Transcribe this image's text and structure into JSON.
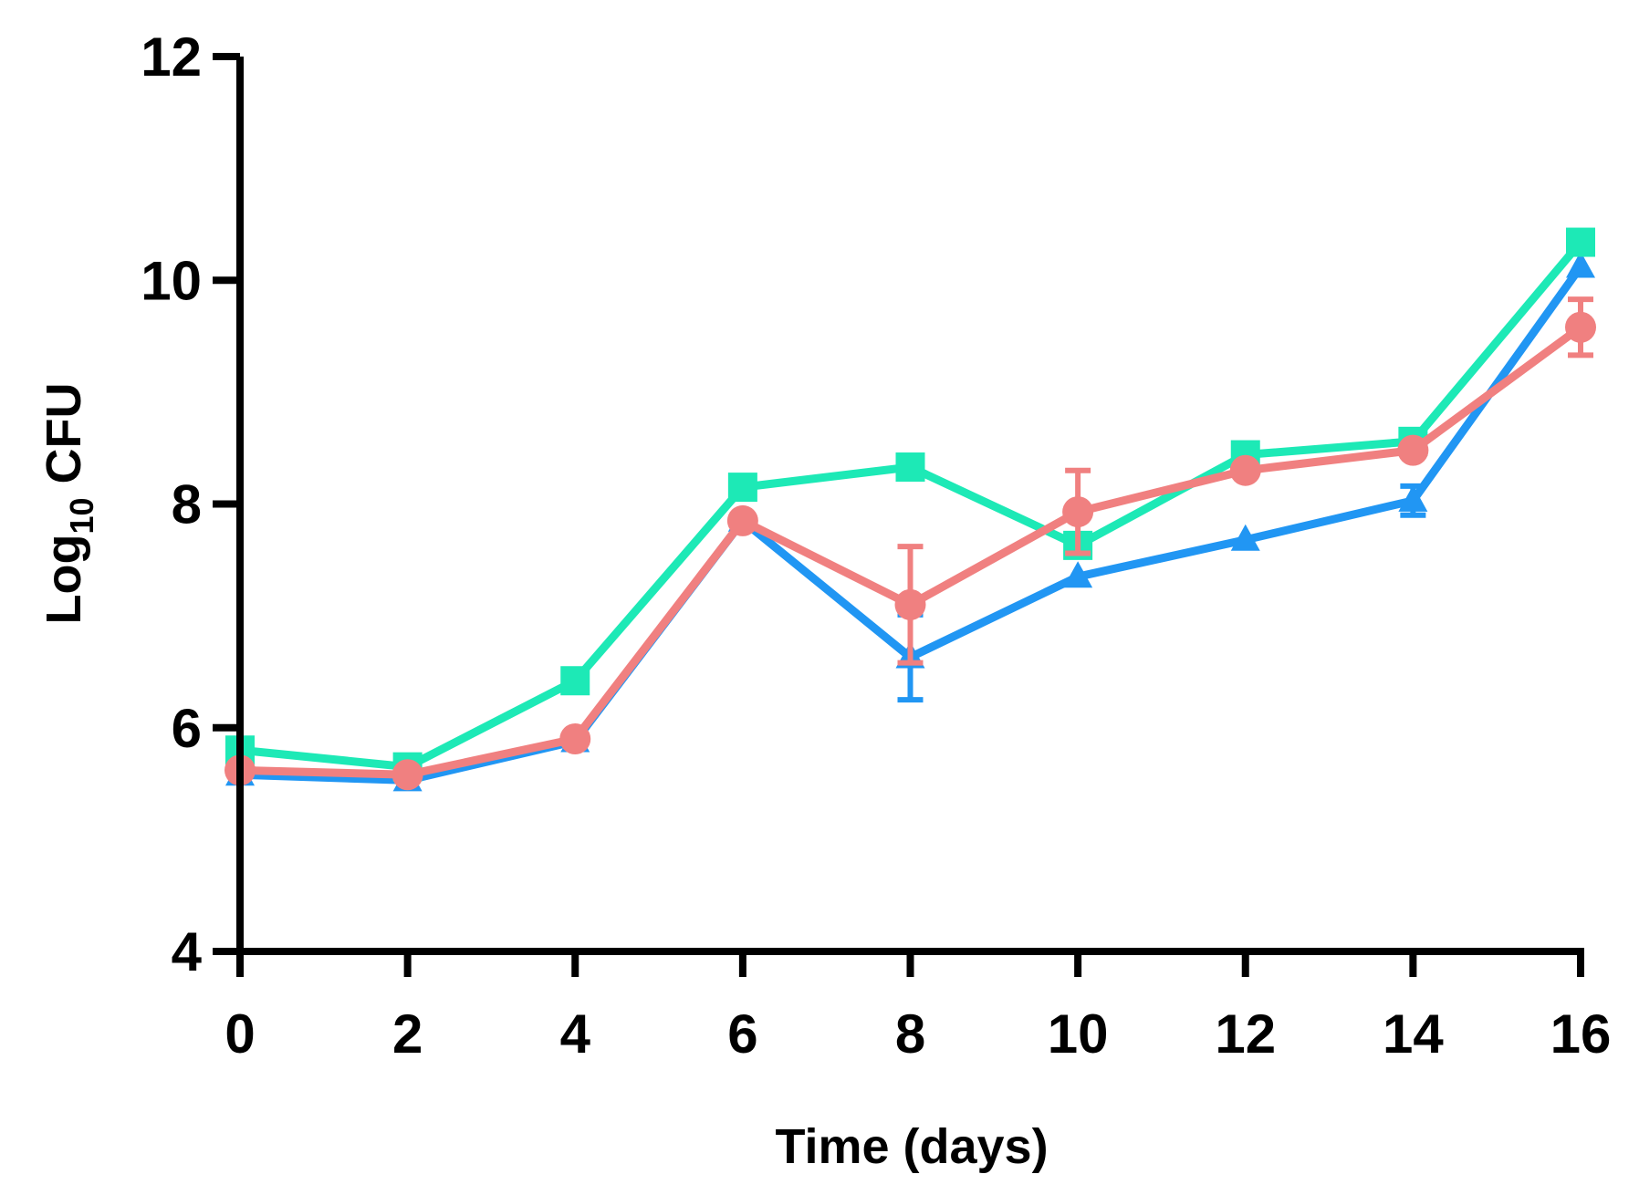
{
  "chart_data": {
    "type": "line",
    "title": "",
    "xlabel": "Time (days)",
    "ylabel_main": "Log",
    "ylabel_sub": "10",
    "ylabel_rest": " CFU",
    "xlim": [
      0,
      16
    ],
    "ylim": [
      4,
      12
    ],
    "x_ticks": [
      0,
      2,
      4,
      6,
      8,
      10,
      12,
      14,
      16
    ],
    "x_tick_labels": [
      "0",
      "2",
      "4",
      "6",
      "8",
      "10",
      "12",
      "14",
      "16"
    ],
    "y_ticks": [
      4,
      6,
      8,
      10,
      12
    ],
    "y_tick_labels": [
      "4",
      "6",
      "8",
      "10",
      "12"
    ],
    "grid": false,
    "series": [
      {
        "name": "blue-triangle-series",
        "color": "#2196F3",
        "marker": "triangle",
        "x": [
          0,
          2,
          4,
          6,
          8,
          10,
          12,
          14,
          16
        ],
        "y": [
          5.58,
          5.53,
          5.88,
          7.85,
          6.63,
          7.35,
          7.68,
          8.03,
          10.12
        ],
        "err": [
          0.05,
          0.05,
          0.04,
          0.05,
          0.38,
          0.05,
          0.04,
          0.13,
          0.05
        ]
      },
      {
        "name": "green-square-series",
        "color": "#1DE9B6",
        "marker": "square",
        "x": [
          0,
          2,
          4,
          6,
          8,
          10,
          12,
          14,
          16
        ],
        "y": [
          5.8,
          5.65,
          6.42,
          8.15,
          8.33,
          7.63,
          8.44,
          8.56,
          10.34
        ],
        "err": [
          0.04,
          0.04,
          0.04,
          0.06,
          0.04,
          0.06,
          0.04,
          0.05,
          0.04
        ]
      },
      {
        "name": "pink-circle-series",
        "color": "#F08080",
        "marker": "circle",
        "x": [
          0,
          2,
          4,
          6,
          8,
          10,
          12,
          14,
          16
        ],
        "y": [
          5.62,
          5.58,
          5.9,
          7.85,
          7.1,
          7.93,
          8.3,
          8.48,
          9.58
        ],
        "err": [
          0.04,
          0.04,
          0.04,
          0.04,
          0.52,
          0.37,
          0.06,
          0.05,
          0.25
        ]
      }
    ]
  }
}
